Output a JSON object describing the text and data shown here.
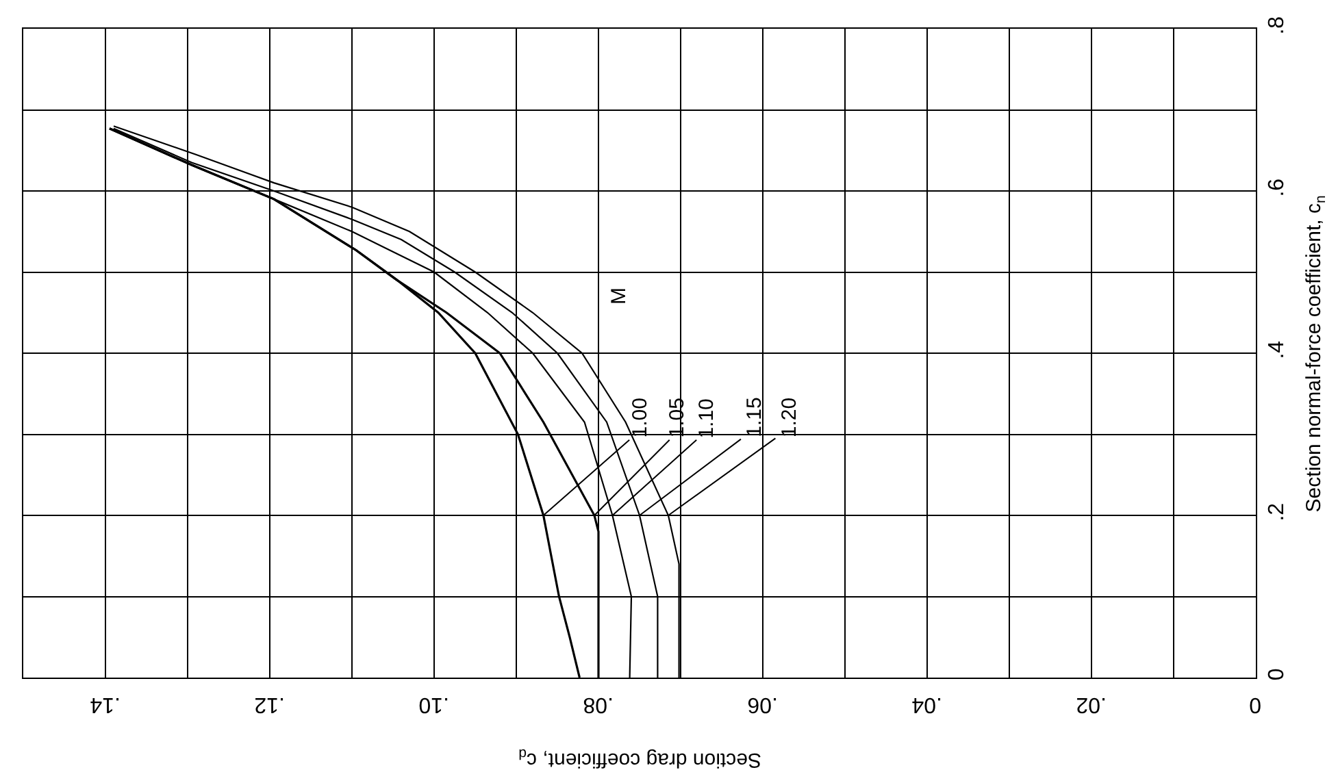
{
  "chart_data": {
    "type": "line",
    "xlabel": "Section drag coefficient, c$_{d}$",
    "ylabel": "Section normal-force coefficient, c$_{n}$",
    "legend_title": "M",
    "series": [
      {
        "name": "1.00",
        "color": "#000000",
        "x": [
          0.0823,
          0.0835,
          0.0848,
          0.0867,
          0.0898,
          0.095,
          0.0995,
          0.1045,
          0.1095,
          0.1195,
          0.1295,
          0.1395
        ],
        "values": [
          0,
          0.05,
          0.1,
          0.2,
          0.3,
          0.4,
          0.45,
          0.49,
          0.527,
          0.59,
          0.632,
          0.677
        ]
      },
      {
        "name": "1.05",
        "color": "#000000",
        "x": [
          0.08,
          0.08,
          0.08,
          0.0805,
          0.0867,
          0.092,
          0.0985,
          0.1045,
          0.1095,
          0.1195,
          0.1295,
          0.1395
        ],
        "values": [
          0,
          0.1,
          0.18,
          0.2,
          0.315,
          0.4,
          0.45,
          0.49,
          0.527,
          0.59,
          0.632,
          0.677
        ]
      },
      {
        "name": "1.10",
        "color": "#000000",
        "x": [
          0.0762,
          0.076,
          0.0783,
          0.0817,
          0.088,
          0.0935,
          0.1,
          0.106,
          0.11,
          0.1195,
          0.1295,
          0.1395
        ],
        "values": [
          0,
          0.1,
          0.2,
          0.315,
          0.4,
          0.45,
          0.5,
          0.53,
          0.55,
          0.59,
          0.632,
          0.677
        ]
      },
      {
        "name": "1.15",
        "color": "#000000",
        "x": [
          0.0728,
          0.0728,
          0.075,
          0.079,
          0.085,
          0.0905,
          0.0975,
          0.104,
          0.11,
          0.1195,
          0.1295,
          0.139
        ],
        "values": [
          0,
          0.1,
          0.2,
          0.315,
          0.4,
          0.45,
          0.5,
          0.54,
          0.565,
          0.6,
          0.635,
          0.677
        ]
      },
      {
        "name": "1.20",
        "color": "#000000",
        "x": [
          0.0702,
          0.0702,
          0.0702,
          0.0715,
          0.0767,
          0.082,
          0.088,
          0.095,
          0.103,
          0.11,
          0.1195,
          0.129,
          0.139
        ],
        "values": [
          0,
          0.1,
          0.14,
          0.2,
          0.315,
          0.4,
          0.45,
          0.5,
          0.55,
          0.58,
          0.61,
          0.645,
          0.68
        ]
      }
    ],
    "xlim": [
      0.15,
      0
    ],
    "xticks": [
      {
        "value": 0.14,
        "label": ".14"
      },
      {
        "value": 0.12,
        "label": ".12"
      },
      {
        "value": 0.1,
        "label": ".10"
      },
      {
        "value": 0.08,
        "label": ".08"
      },
      {
        "value": 0.06,
        "label": ".06"
      },
      {
        "value": 0.04,
        "label": ".04"
      },
      {
        "value": 0.02,
        "label": ".02"
      },
      0
    ],
    "ylim": [
      0,
      0.8
    ],
    "yticks": [
      0,
      {
        "value": 0.1,
        "label": null
      },
      {
        "value": 0.2,
        "label": ".2"
      },
      {
        "value": 0.3,
        "label": null
      },
      {
        "value": 0.4,
        "label": ".4"
      },
      {
        "value": 0.5,
        "label": null
      },
      {
        "value": 0.6,
        "label": ".6"
      },
      {
        "value": 0.7,
        "label": null
      },
      {
        "value": 0.8,
        "label": ".8"
      }
    ],
    "grid": true,
    "line_style": "solid"
  }
}
